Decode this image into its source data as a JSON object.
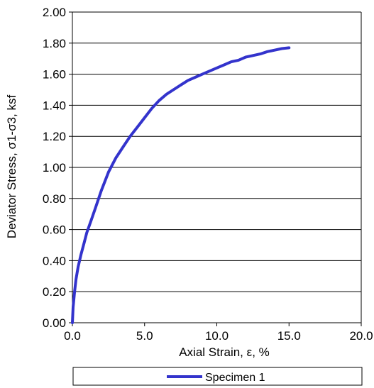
{
  "chart_data": {
    "type": "line",
    "title": "",
    "xlabel": "Axial Strain, ε, %",
    "ylabel": "Deviator Stress, σ1-σ3, ksf",
    "xlim": [
      0,
      20
    ],
    "ylim": [
      0,
      2
    ],
    "x_ticks": [
      "0.0",
      "5.0",
      "10.0",
      "15.0",
      "20.0"
    ],
    "y_ticks": [
      "0.00",
      "0.20",
      "0.40",
      "0.60",
      "0.80",
      "1.00",
      "1.20",
      "1.40",
      "1.60",
      "1.80",
      "2.00"
    ],
    "grid": "horizontal",
    "legend_position": "bottom",
    "colors": {
      "series": "#3333CC",
      "grid": "#000000"
    },
    "series": [
      {
        "name": "Specimen 1",
        "x": [
          0,
          0.05,
          0.15,
          0.25,
          0.4,
          0.6,
          0.8,
          1.0,
          1.3,
          1.6,
          2.0,
          2.5,
          3.0,
          3.5,
          4.0,
          4.5,
          5.0,
          5.5,
          6.0,
          6.5,
          7.0,
          7.5,
          8.0,
          8.5,
          9.0,
          9.5,
          10.0,
          10.5,
          11.0,
          11.5,
          12.0,
          12.5,
          13.0,
          13.5,
          14.0,
          14.5,
          15.0
        ],
        "values": [
          0,
          0.1,
          0.2,
          0.28,
          0.36,
          0.44,
          0.51,
          0.58,
          0.66,
          0.74,
          0.85,
          0.97,
          1.06,
          1.13,
          1.2,
          1.26,
          1.32,
          1.38,
          1.43,
          1.47,
          1.5,
          1.53,
          1.56,
          1.58,
          1.6,
          1.62,
          1.64,
          1.66,
          1.68,
          1.69,
          1.71,
          1.72,
          1.73,
          1.745,
          1.755,
          1.765,
          1.77
        ]
      }
    ]
  }
}
